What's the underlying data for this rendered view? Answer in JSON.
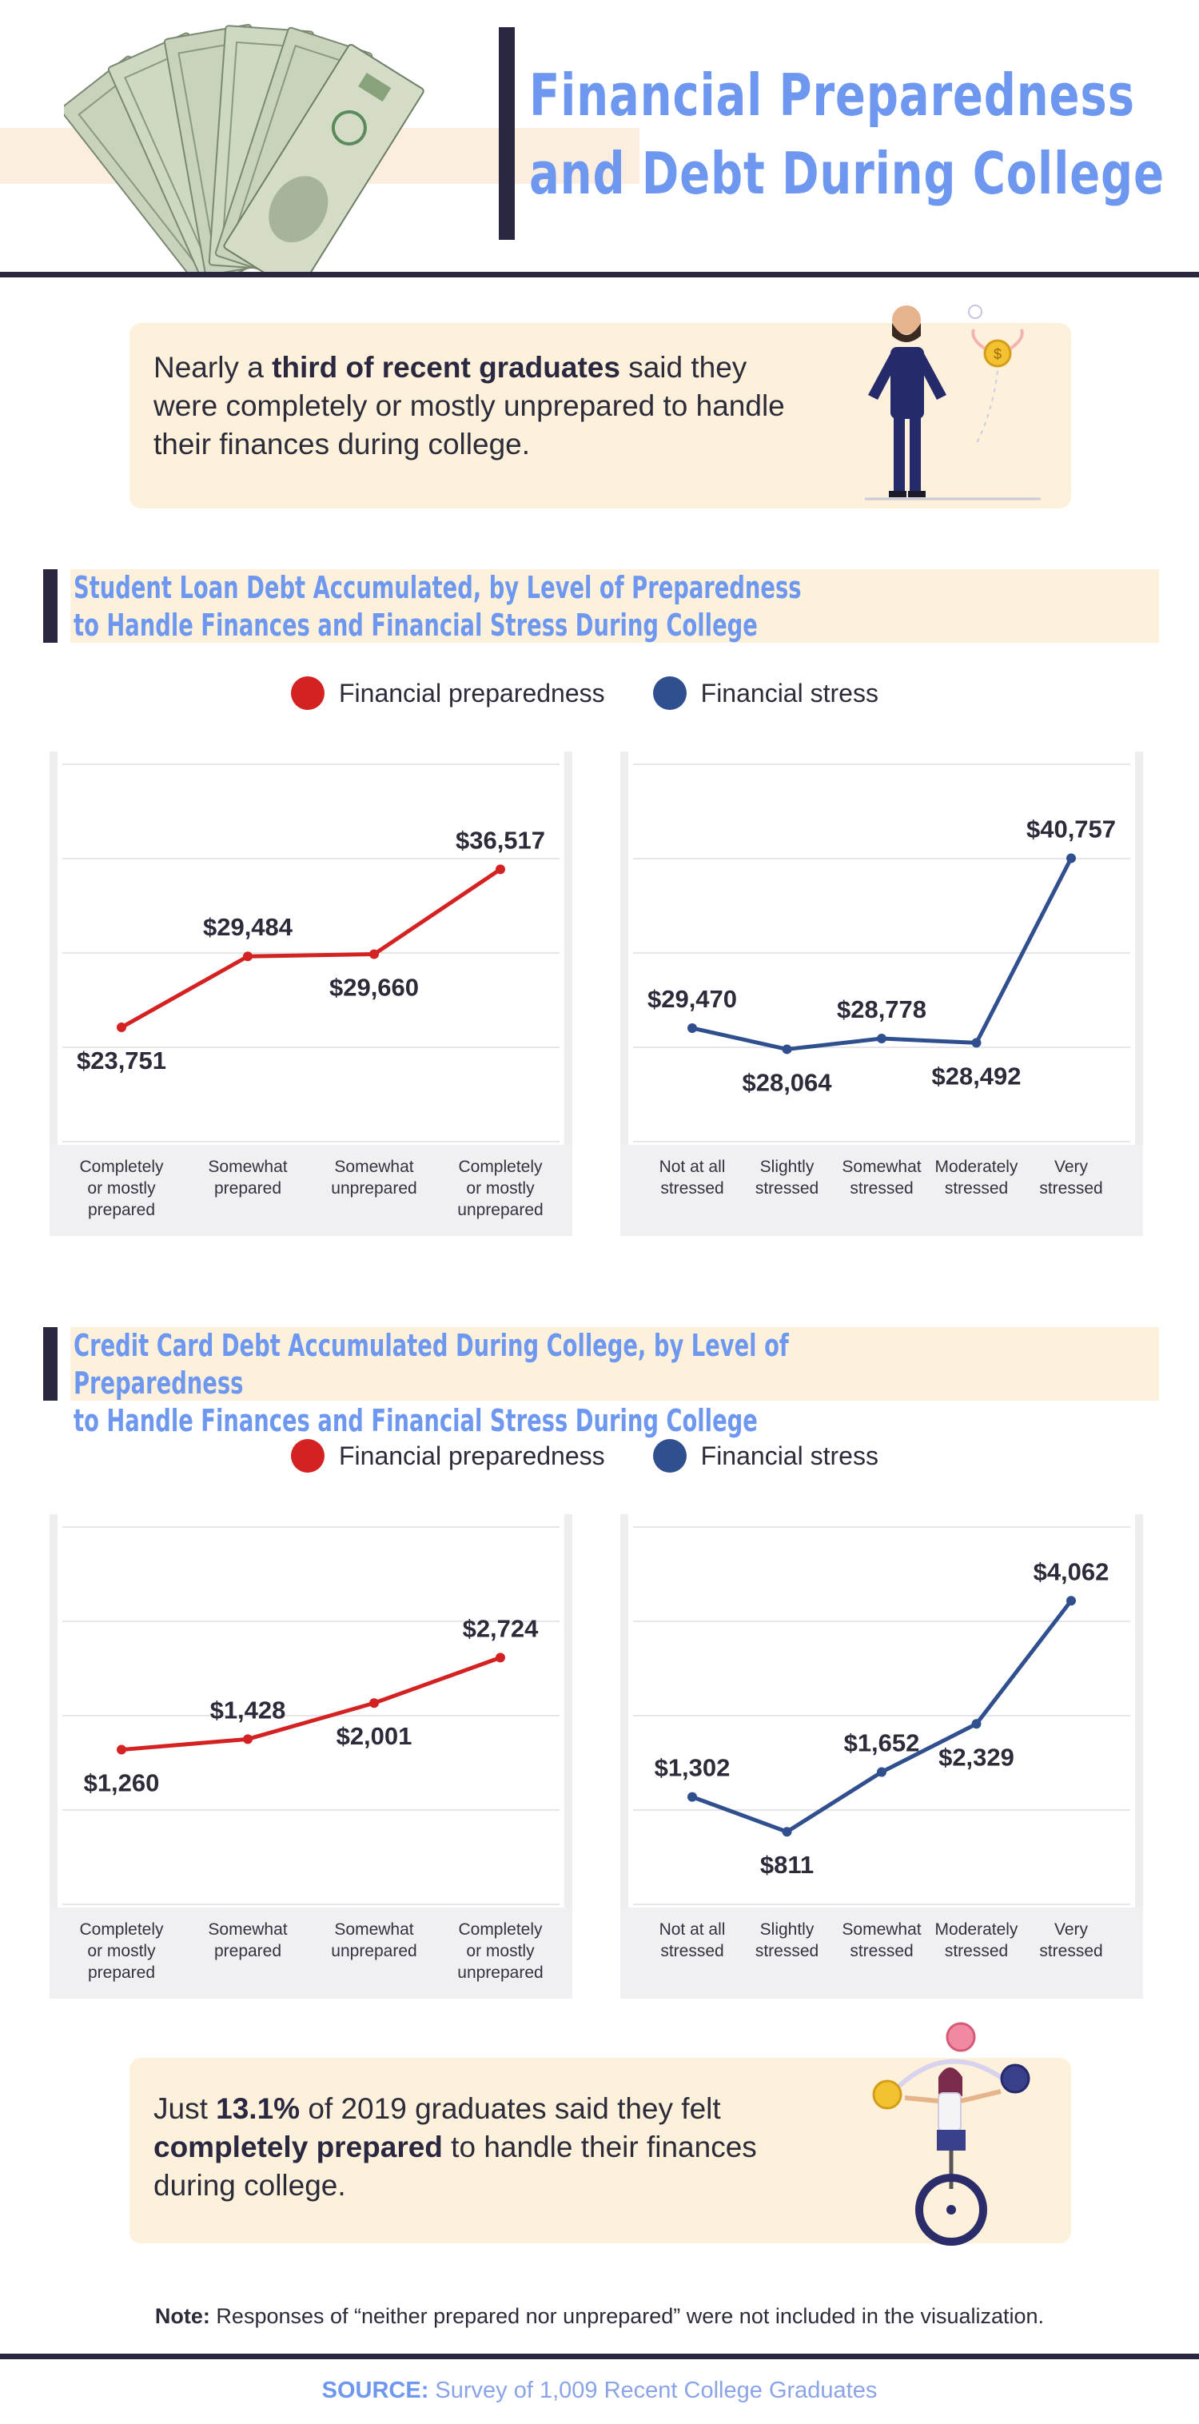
{
  "header": {
    "title_line1": "Financial Preparedness",
    "title_line2": "and Debt During College"
  },
  "callout_top": {
    "text_pre": "Nearly a ",
    "text_bold": "third of recent graduates",
    "text_post": " said they were completely or mostly unprepared to handle their finances during college."
  },
  "section1": {
    "title_line1": "Student Loan Debt Accumulated, by Level of Preparedness",
    "title_line2": "to Handle Finances and Financial Stress During College"
  },
  "section2": {
    "title_line1": "Credit Card Debt Accumulated During College, by Level of Preparedness",
    "title_line2": "to Handle Finances and Financial Stress During College"
  },
  "legend": {
    "preparedness": "Financial preparedness",
    "stress": "Financial stress"
  },
  "colors": {
    "preparedness": "#d42222",
    "stress": "#2f4f8f",
    "accent_blue": "#6e98f0",
    "navy": "#2a2840",
    "cream": "#fdf1dc"
  },
  "chart_data": [
    {
      "type": "line",
      "series_name": "Financial preparedness",
      "categories": [
        "Completely or mostly prepared",
        "Somewhat prepared",
        "Somewhat unprepared",
        "Completely or mostly unprepared"
      ],
      "category_lines": [
        [
          "Completely",
          "or mostly",
          "prepared"
        ],
        [
          "Somewhat",
          "prepared"
        ],
        [
          "Somewhat",
          "unprepared"
        ],
        [
          "Completely",
          "or mostly",
          "unprepared"
        ]
      ],
      "values": [
        23751,
        29484,
        29660,
        36517
      ],
      "labels": [
        "$23,751",
        "$29,484",
        "$29,660",
        "$36,517"
      ],
      "label_pos": [
        "below",
        "above",
        "below",
        "above"
      ],
      "ylim": [
        14000,
        45000
      ],
      "color": "#d42222"
    },
    {
      "type": "line",
      "series_name": "Financial stress",
      "categories": [
        "Not at all stressed",
        "Slightly stressed",
        "Somewhat stressed",
        "Moderately stressed",
        "Very stressed"
      ],
      "category_lines": [
        [
          "Not at all",
          "stressed"
        ],
        [
          "Slightly",
          "stressed"
        ],
        [
          "Somewhat",
          "stressed"
        ],
        [
          "Moderately",
          "stressed"
        ],
        [
          "Very",
          "stressed"
        ]
      ],
      "values": [
        29470,
        28064,
        28778,
        28492,
        40757
      ],
      "labels": [
        "$29,470",
        "$28,064",
        "$28,778",
        "$28,492",
        "$40,757"
      ],
      "label_pos": [
        "above",
        "below",
        "above",
        "below",
        "above"
      ],
      "ylim": [
        21500,
        47000
      ],
      "color": "#2f4f8f"
    },
    {
      "type": "line",
      "series_name": "Financial preparedness",
      "categories": [
        "Completely or mostly prepared",
        "Somewhat prepared",
        "Somewhat unprepared",
        "Completely or mostly unprepared"
      ],
      "category_lines": [
        [
          "Completely",
          "or mostly",
          "prepared"
        ],
        [
          "Somewhat",
          "prepared"
        ],
        [
          "Somewhat",
          "unprepared"
        ],
        [
          "Completely",
          "or mostly",
          "unprepared"
        ]
      ],
      "values": [
        1260,
        1428,
        2001,
        2724
      ],
      "labels": [
        "$1,260",
        "$1,428",
        "$2,001",
        "$2,724"
      ],
      "label_pos": [
        "below",
        "above",
        "below",
        "above"
      ],
      "ylim": [
        -1300,
        4800
      ],
      "color": "#d42222"
    },
    {
      "type": "line",
      "series_name": "Financial stress",
      "categories": [
        "Not at all stressed",
        "Slightly stressed",
        "Somewhat stressed",
        "Moderately stressed",
        "Very stressed"
      ],
      "category_lines": [
        [
          "Not at all",
          "stressed"
        ],
        [
          "Slightly",
          "stressed"
        ],
        [
          "Somewhat",
          "stressed"
        ],
        [
          "Moderately",
          "stressed"
        ],
        [
          "Very",
          "stressed"
        ]
      ],
      "values": [
        1302,
        811,
        1652,
        2329,
        4062
      ],
      "labels": [
        "$1,302",
        "$811",
        "$1,652",
        "$2,329",
        "$4,062"
      ],
      "label_pos": [
        "above",
        "below",
        "above",
        "below",
        "above"
      ],
      "ylim": [
        -300,
        5100
      ],
      "color": "#2f4f8f"
    }
  ],
  "callout_bottom": {
    "pre1": "Just ",
    "bold1": "13.1%",
    "mid": " of 2019 graduates said they felt ",
    "bold2": "completely prepared",
    "post": " to handle their finances during college."
  },
  "note": {
    "label": "Note:",
    "text": " Responses of “neither prepared nor unprepared” were not included in the visualization."
  },
  "source": {
    "label": "SOURCE:",
    "text": " Survey of 1,009 Recent College Graduates"
  }
}
